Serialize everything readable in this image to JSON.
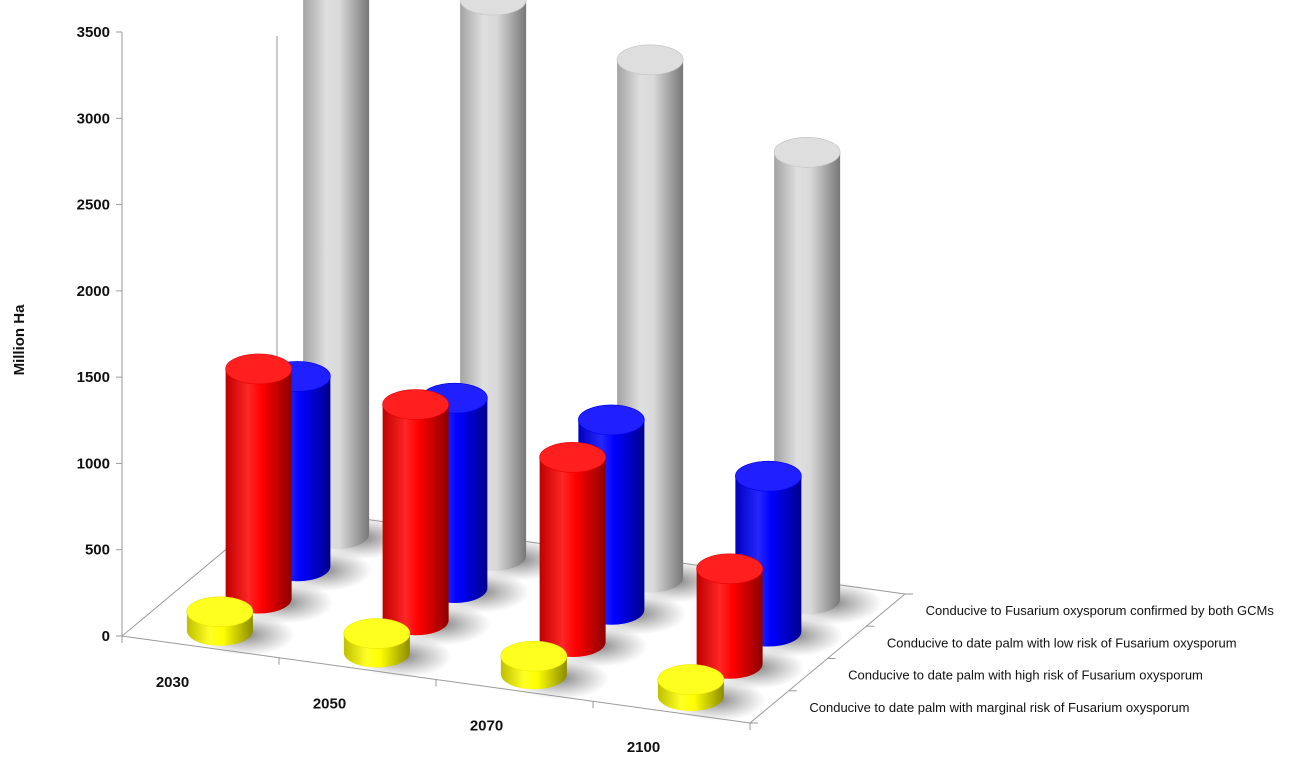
{
  "chart_data": {
    "type": "bar",
    "title": "",
    "ylabel": "Million Ha",
    "xlabel": "",
    "ylim": [
      0,
      3500
    ],
    "yticks": [
      0,
      500,
      1000,
      1500,
      2000,
      2500,
      3000,
      3500
    ],
    "categories": [
      "2030",
      "2050",
      "2070",
      "2100"
    ],
    "series": [
      {
        "name": "Conducive to date palm with marginal risk of Fusarium oxysporum",
        "color": "#ffff00",
        "values": [
          110,
          110,
          105,
          95
        ]
      },
      {
        "name": "Conducive to date palm with high risk of Fusarium oxysporum",
        "color": "#ff0000",
        "values": [
          1330,
          1250,
          1070,
          550
        ]
      },
      {
        "name": "Conducive to date palm with low risk of Fusarium oxysporum",
        "color": "#0000ff",
        "values": [
          1100,
          1100,
          1100,
          900
        ]
      },
      {
        "name": "Conducive to Fusarium oxysporum confirmed by both GCMs",
        "color": "#d9d9d9",
        "values": [
          3360,
          3220,
          3000,
          2590
        ]
      }
    ],
    "grid": false,
    "legend": "none",
    "style": "3d-cylinder"
  }
}
